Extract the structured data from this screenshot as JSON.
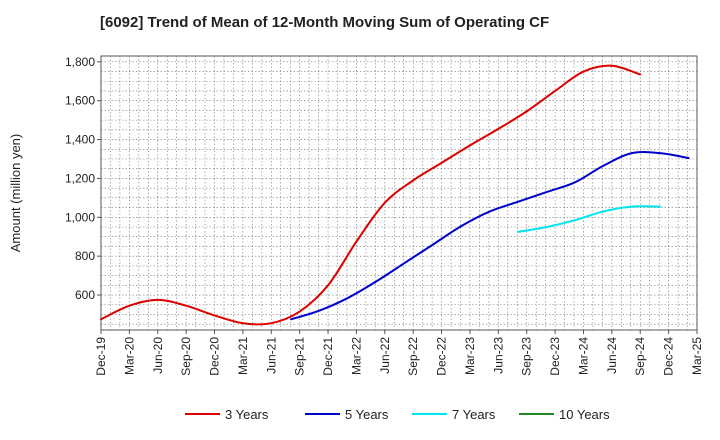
{
  "chart_data": {
    "type": "line",
    "title": "[6092]  Trend of Mean of 12-Month Moving Sum of Operating CF",
    "xlabel": "",
    "ylabel": "Amount (million yen)",
    "ylim": [
      420,
      1830
    ],
    "yticks": [
      600,
      800,
      1000,
      1200,
      1400,
      1600,
      1800
    ],
    "ytick_labels": [
      "600",
      "800",
      "1,000",
      "1,200",
      "1,400",
      "1,600",
      "1,800"
    ],
    "x_categories": [
      "Dec-19",
      "Mar-20",
      "Jun-20",
      "Sep-20",
      "Dec-20",
      "Mar-21",
      "Jun-21",
      "Sep-21",
      "Dec-21",
      "Mar-22",
      "Jun-22",
      "Sep-22",
      "Dec-22",
      "Mar-23",
      "Jun-23",
      "Sep-23",
      "Dec-23",
      "Mar-24",
      "Jun-24",
      "Sep-24",
      "Dec-24",
      "Mar-25"
    ],
    "grid": true,
    "legend_position": "bottom",
    "series": [
      {
        "name": "3 Years",
        "color": "#dd0000",
        "start_index": 0,
        "values": [
          475,
          545,
          575,
          545,
          495,
          455,
          455,
          515,
          650,
          875,
          1075,
          1190,
          1280,
          1370,
          1455,
          1545,
          1650,
          1750,
          1780,
          1735
        ]
      },
      {
        "name": "5 Years",
        "color": "#0000cc",
        "start_index": 6.7,
        "values": [
          475,
          520,
          585,
          670,
          765,
          860,
          955,
          1030,
          1080,
          1130,
          1180,
          1265,
          1330,
          1330,
          1305
        ]
      },
      {
        "name": "7 Years",
        "color": "#00e5ee",
        "start_index": 14.7,
        "values": [
          925,
          950,
          985,
          1030,
          1055,
          1055
        ]
      },
      {
        "name": "10 Years",
        "color": "#228822",
        "start_index": 0,
        "values": []
      }
    ]
  }
}
